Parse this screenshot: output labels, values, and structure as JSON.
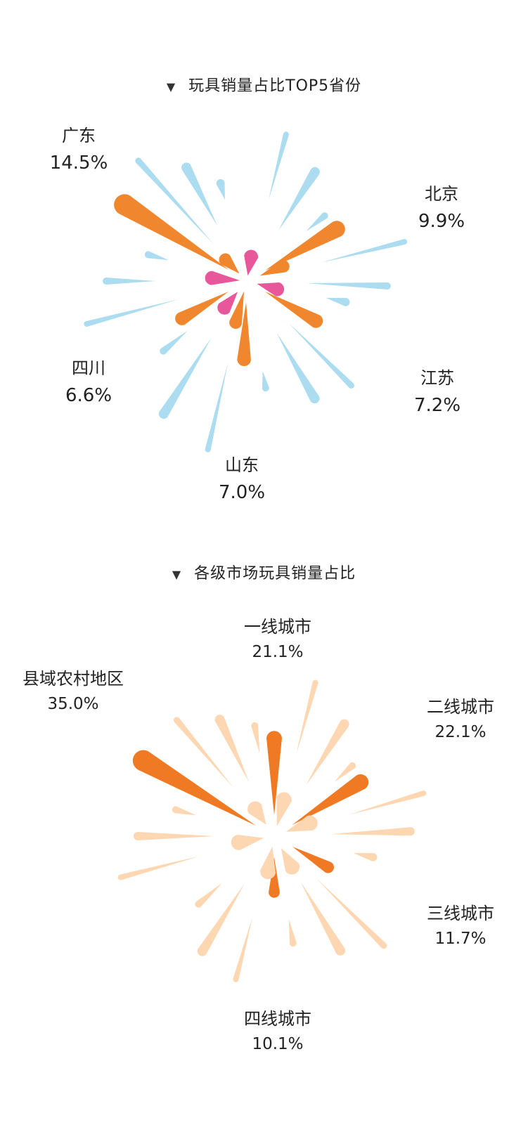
{
  "chart_data": [
    {
      "type": "pie",
      "title": "玩具销量占比TOP5省份",
      "categories": [
        "广东",
        "北京",
        "江苏",
        "山东",
        "四川"
      ],
      "values": [
        14.5,
        9.9,
        7.2,
        7.0,
        6.6
      ],
      "value_labels": [
        "14.5%",
        "9.9%",
        "7.2%",
        "7.0%",
        "6.6%"
      ],
      "unit": "%",
      "colors": {
        "accent": "#F0872E",
        "decor": "#ABDCF0",
        "center": "#E8579A"
      }
    },
    {
      "type": "pie",
      "title": "各级市场玩具销量占比",
      "categories": [
        "一线城市",
        "二线城市",
        "三线城市",
        "四线城市",
        "县域农村地区"
      ],
      "values": [
        21.1,
        22.1,
        11.7,
        10.1,
        35.0
      ],
      "value_labels": [
        "21.1%",
        "22.1%",
        "11.7%",
        "10.1%",
        "35.0%"
      ],
      "unit": "%",
      "colors": {
        "accent": "#F07A24",
        "decor": "#FDD6B2"
      }
    }
  ]
}
